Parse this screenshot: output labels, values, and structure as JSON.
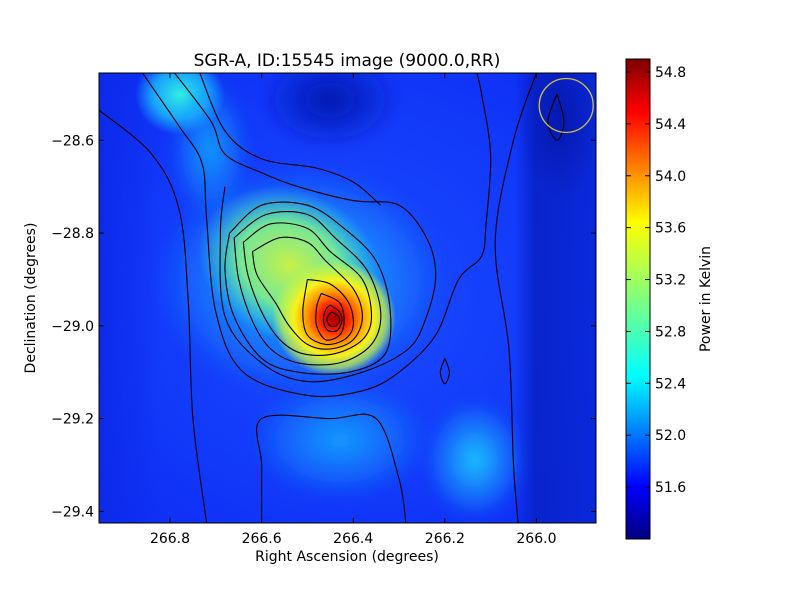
{
  "chart_data": {
    "type": "heatmap",
    "title": "SGR-A, ID:15545 image (9000.0,RR)",
    "xlabel": "Right Ascension (degrees)",
    "ylabel": "Declination (degrees)",
    "colorbar_label": "Power in Kelvin",
    "colormap": "jet",
    "xlim": [
      266.955,
      265.87
    ],
    "ylim": [
      -29.425,
      -28.455
    ],
    "x_ticks": [
      {
        "value": 266.8,
        "label": "266.8"
      },
      {
        "value": 266.6,
        "label": "266.6"
      },
      {
        "value": 266.4,
        "label": "266.4"
      },
      {
        "value": 266.2,
        "label": "266.2"
      },
      {
        "value": 266.0,
        "label": "266.0"
      }
    ],
    "y_ticks": [
      {
        "value": -28.6,
        "label": "−28.6"
      },
      {
        "value": -28.8,
        "label": "−28.8"
      },
      {
        "value": -29.0,
        "label": "−29.0"
      },
      {
        "value": -29.2,
        "label": "−29.2"
      },
      {
        "value": -29.4,
        "label": "−29.4"
      }
    ],
    "color_range": [
      51.2,
      54.9
    ],
    "colorbar_ticks": [
      {
        "value": 54.8,
        "label": "54.8"
      },
      {
        "value": 54.4,
        "label": "54.4"
      },
      {
        "value": 54.0,
        "label": "54.0"
      },
      {
        "value": 53.6,
        "label": "53.6"
      },
      {
        "value": 53.2,
        "label": "53.2"
      },
      {
        "value": 52.8,
        "label": "52.8"
      },
      {
        "value": 52.4,
        "label": "52.4"
      },
      {
        "value": 52.0,
        "label": "52.0"
      },
      {
        "value": 51.6,
        "label": "51.6"
      }
    ],
    "contour_color": "#000000",
    "contours": [
      {
        "level": 51.65,
        "rings": [
          [
            [
              266.955,
              -28.535
            ],
            [
              266.84,
              -28.63
            ],
            [
              266.78,
              -28.75
            ],
            [
              266.76,
              -28.95
            ],
            [
              266.75,
              -29.2
            ],
            [
              266.72,
              -29.425
            ]
          ],
          [
            [
              266.6,
              -29.425
            ],
            [
              266.6,
              -29.3
            ],
            [
              266.6,
              -29.2
            ],
            [
              266.45,
              -29.2
            ],
            [
              266.35,
              -29.2
            ],
            [
              266.3,
              -29.33
            ],
            [
              266.285,
              -29.425
            ]
          ],
          [
            [
              266.0,
              -28.455
            ],
            [
              266.05,
              -28.6
            ],
            [
              266.09,
              -28.82
            ],
            [
              266.06,
              -29.05
            ],
            [
              266.05,
              -29.3
            ],
            [
              266.04,
              -29.425
            ]
          ]
        ]
      },
      {
        "level": 51.85,
        "rings": [
          [
            [
              266.86,
              -28.455
            ],
            [
              266.78,
              -28.57
            ],
            [
              266.73,
              -28.65
            ],
            [
              266.72,
              -28.77
            ],
            [
              266.7,
              -28.97
            ],
            [
              266.64,
              -29.1
            ],
            [
              266.5,
              -29.15
            ],
            [
              266.38,
              -29.14
            ],
            [
              266.3,
              -29.1
            ],
            [
              266.22,
              -29.02
            ],
            [
              266.17,
              -28.9
            ],
            [
              266.12,
              -28.85
            ],
            [
              266.11,
              -28.78
            ],
            [
              266.1,
              -28.63
            ],
            [
              266.12,
              -28.5
            ],
            [
              266.13,
              -28.455
            ]
          ]
        ]
      },
      {
        "level": 51.95,
        "rings": [
          [
            [
              266.79,
              -28.455
            ],
            [
              266.71,
              -28.56
            ],
            [
              266.68,
              -28.63
            ],
            [
              266.6,
              -28.67
            ],
            [
              266.52,
              -28.7
            ],
            [
              266.4,
              -28.73
            ],
            [
              266.3,
              -28.74
            ],
            [
              266.24,
              -28.81
            ],
            [
              266.22,
              -28.89
            ],
            [
              266.24,
              -28.98
            ],
            [
              266.28,
              -29.05
            ],
            [
              266.38,
              -29.1
            ],
            [
              266.5,
              -29.12
            ],
            [
              266.6,
              -29.08
            ],
            [
              266.68,
              -28.98
            ],
            [
              266.69,
              -28.8
            ],
            [
              266.68,
              -28.7
            ]
          ]
        ]
      },
      {
        "level": 52.15,
        "rings": [
          [
            [
              266.735,
              -28.455
            ],
            [
              266.68,
              -28.58
            ],
            [
              266.6,
              -28.64
            ],
            [
              266.48,
              -28.66
            ],
            [
              266.4,
              -28.69
            ],
            [
              266.34,
              -28.74
            ]
          ]
        ]
      },
      {
        "level": 51.45,
        "rings": [
          [
            [
              265.955,
              -28.5
            ],
            [
              265.94,
              -28.56
            ],
            [
              265.955,
              -28.6
            ],
            [
              265.975,
              -28.56
            ],
            [
              265.955,
              -28.5
            ]
          ],
          [
            [
              266.2,
              -29.07
            ],
            [
              266.19,
              -29.1
            ],
            [
              266.2,
              -29.125
            ],
            [
              266.21,
              -29.1
            ],
            [
              266.2,
              -29.07
            ]
          ]
        ]
      },
      {
        "level": 52.0,
        "rings": [
          [
            [
              266.67,
              -28.8
            ],
            [
              266.6,
              -28.74
            ],
            [
              266.5,
              -28.74
            ],
            [
              266.42,
              -28.79
            ],
            [
              266.35,
              -28.86
            ],
            [
              266.32,
              -28.96
            ],
            [
              266.33,
              -29.06
            ],
            [
              266.41,
              -29.1
            ],
            [
              266.52,
              -29.1
            ],
            [
              266.6,
              -29.07
            ],
            [
              266.66,
              -28.98
            ],
            [
              266.68,
              -28.88
            ],
            [
              266.67,
              -28.8
            ]
          ]
        ]
      },
      {
        "level": 52.4,
        "rings": [
          [
            [
              266.66,
              -28.81
            ],
            [
              266.59,
              -28.76
            ],
            [
              266.5,
              -28.76
            ],
            [
              266.44,
              -28.81
            ],
            [
              266.37,
              -28.88
            ],
            [
              266.34,
              -28.97
            ],
            [
              266.36,
              -29.04
            ],
            [
              266.43,
              -29.08
            ],
            [
              266.52,
              -29.08
            ],
            [
              266.58,
              -29.05
            ],
            [
              266.62,
              -28.99
            ],
            [
              266.65,
              -28.9
            ],
            [
              266.66,
              -28.81
            ]
          ]
        ]
      },
      {
        "level": 52.8,
        "rings": [
          [
            [
              266.64,
              -28.82
            ],
            [
              266.58,
              -28.78
            ],
            [
              266.5,
              -28.79
            ],
            [
              266.45,
              -28.84
            ],
            [
              266.38,
              -28.9
            ],
            [
              266.36,
              -28.98
            ],
            [
              266.38,
              -29.03
            ],
            [
              266.44,
              -29.06
            ],
            [
              266.51,
              -29.06
            ],
            [
              266.56,
              -29.03
            ],
            [
              266.6,
              -28.97
            ],
            [
              266.63,
              -28.89
            ],
            [
              266.64,
              -28.82
            ]
          ]
        ]
      },
      {
        "level": 53.2,
        "rings": [
          [
            [
              266.62,
              -28.84
            ],
            [
              266.56,
              -28.81
            ],
            [
              266.5,
              -28.82
            ],
            [
              266.46,
              -28.86
            ],
            [
              266.4,
              -28.92
            ],
            [
              266.38,
              -28.98
            ],
            [
              266.4,
              -29.03
            ],
            [
              266.45,
              -29.05
            ],
            [
              266.5,
              -29.04
            ],
            [
              266.54,
              -29.0
            ],
            [
              266.57,
              -28.95
            ],
            [
              266.61,
              -28.89
            ],
            [
              266.62,
              -28.84
            ]
          ]
        ]
      },
      {
        "level": 53.6,
        "rings": [
          [
            [
              266.5,
              -28.9
            ],
            [
              266.45,
              -28.91
            ],
            [
              266.41,
              -28.95
            ],
            [
              266.4,
              -29.0
            ],
            [
              266.42,
              -29.03
            ],
            [
              266.46,
              -29.04
            ],
            [
              266.5,
              -29.02
            ],
            [
              266.51,
              -28.97
            ],
            [
              266.5,
              -28.9
            ]
          ]
        ]
      },
      {
        "level": 54.0,
        "rings": [
          [
            [
              266.47,
              -28.93
            ],
            [
              266.43,
              -28.95
            ],
            [
              266.42,
              -28.99
            ],
            [
              266.43,
              -29.02
            ],
            [
              266.46,
              -29.03
            ],
            [
              266.48,
              -29.0
            ],
            [
              266.48,
              -28.96
            ],
            [
              266.47,
              -28.93
            ]
          ]
        ]
      },
      {
        "level": 54.4,
        "rings": [
          [
            [
              266.45,
              -28.955
            ],
            [
              266.43,
              -28.97
            ],
            [
              266.425,
              -28.99
            ],
            [
              266.435,
              -29.01
            ],
            [
              266.455,
              -29.01
            ],
            [
              266.465,
              -28.99
            ],
            [
              266.46,
              -28.965
            ],
            [
              266.45,
              -28.955
            ]
          ]
        ]
      },
      {
        "level": 54.7,
        "rings": [
          [
            [
              266.445,
              -28.97
            ],
            [
              266.432,
              -28.98
            ],
            [
              266.43,
              -28.99
            ],
            [
              266.438,
              -29.0
            ],
            [
              266.45,
              -29.0
            ],
            [
              266.457,
              -28.99
            ],
            [
              266.453,
              -28.976
            ],
            [
              266.445,
              -28.97
            ]
          ]
        ]
      }
    ],
    "marker_circle": {
      "ra": 265.935,
      "dec": -28.525,
      "color": "#c9c244"
    }
  }
}
